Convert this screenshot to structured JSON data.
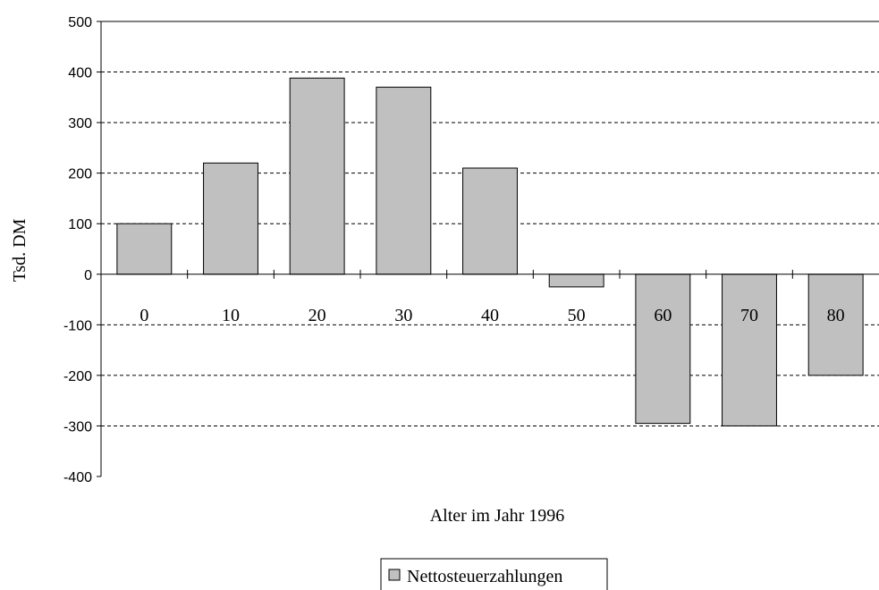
{
  "chart_data": {
    "type": "bar",
    "xlabel": "Alter im Jahr 1996",
    "ylabel": "Tsd. DM",
    "categories": [
      "0",
      "10",
      "20",
      "30",
      "40",
      "50",
      "60",
      "70",
      "80"
    ],
    "series": [
      {
        "name": "Nettosteuerzahlungen",
        "values": [
          100,
          220,
          388,
          370,
          210,
          -25,
          -295,
          -300,
          -200
        ],
        "color": "#c0c0c0"
      }
    ],
    "ylim": [
      -400,
      500
    ],
    "yticks": [
      500,
      400,
      300,
      200,
      100,
      0,
      -100,
      -200,
      -300,
      -400
    ],
    "grid": "dashed horizontal",
    "legend": "bottom-center"
  }
}
